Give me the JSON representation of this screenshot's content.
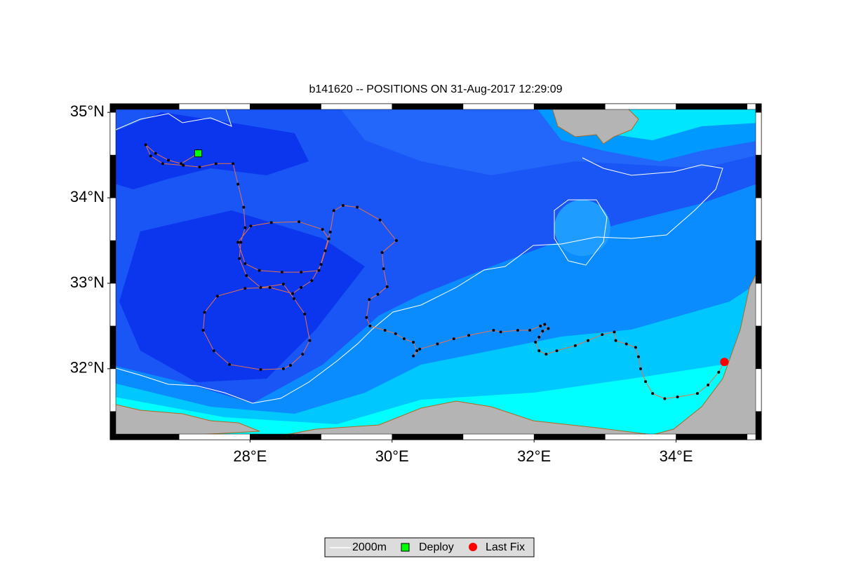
{
  "chart_data": {
    "type": "map",
    "title": "b141620 -- POSITIONS ON 31-Aug-2017 12:29:09",
    "xlim": [
      26.03,
      35.2
    ],
    "ylim": [
      31.17,
      35.1
    ],
    "xticks": [
      {
        "value": 28,
        "label": "28°E"
      },
      {
        "value": 30,
        "label": "30°E"
      },
      {
        "value": 32,
        "label": "32°E"
      },
      {
        "value": 34,
        "label": "34°E"
      }
    ],
    "yticks": [
      {
        "value": 32,
        "label": "32°N"
      },
      {
        "value": 33,
        "label": "33°N"
      },
      {
        "value": 34,
        "label": "34°N"
      },
      {
        "value": 35,
        "label": "35°N"
      }
    ],
    "contour": {
      "name": "2000m",
      "color": "#ffffff"
    },
    "track": {
      "color": "#e8704a",
      "marker_color": "#000000",
      "x": [
        27.27,
        27.03,
        26.85,
        26.67,
        26.53,
        26.6,
        26.77,
        27.06,
        27.29,
        27.52,
        27.76,
        27.83,
        27.91,
        27.93,
        27.87,
        27.85,
        27.95,
        28.15,
        28.47,
        28.62,
        28.77,
        28.84,
        28.74,
        28.57,
        28.47,
        28.15,
        27.71,
        27.49,
        27.34,
        27.36,
        27.54,
        27.93,
        28.28,
        28.6,
        28.72,
        28.87,
        29.0,
        29.06,
        29.11,
        29.02,
        28.69,
        28.3,
        28.01,
        27.83,
        27.93,
        28.13,
        28.45,
        28.72,
        28.97,
        29.13,
        29.18,
        29.31,
        29.51,
        29.83,
        30.06,
        29.86,
        29.88,
        29.93,
        29.8,
        29.68,
        29.64,
        29.69,
        29.9,
        30.05,
        30.17,
        30.3,
        30.35,
        30.3,
        30.39,
        30.64,
        30.87,
        31.08,
        31.43,
        31.53,
        31.77,
        31.94,
        32.09,
        32.15,
        32.2,
        32.12,
        32.07,
        32.02,
        32.07,
        32.17,
        32.32,
        32.58,
        32.76,
        32.96,
        33.13,
        33.15,
        33.3,
        33.43,
        33.47,
        33.5,
        33.57,
        33.67,
        33.84,
        34.02,
        34.3,
        34.45,
        34.6,
        34.68
      ],
      "y": [
        34.52,
        34.4,
        34.44,
        34.52,
        34.62,
        34.49,
        34.4,
        34.38,
        34.36,
        34.4,
        34.4,
        34.16,
        33.89,
        33.65,
        33.48,
        33.29,
        33.09,
        32.95,
        32.99,
        32.82,
        32.64,
        32.33,
        32.17,
        32.04,
        32.0,
        31.99,
        32.05,
        32.21,
        32.45,
        32.66,
        32.85,
        32.94,
        32.95,
        32.88,
        32.95,
        33.03,
        33.22,
        33.38,
        33.52,
        33.63,
        33.72,
        33.71,
        33.67,
        33.48,
        33.23,
        33.15,
        33.13,
        33.13,
        33.15,
        33.6,
        33.85,
        33.91,
        33.89,
        33.74,
        33.5,
        33.36,
        33.17,
        32.96,
        32.87,
        32.81,
        32.6,
        32.5,
        32.45,
        32.41,
        32.35,
        32.31,
        32.21,
        32.15,
        32.23,
        32.29,
        32.35,
        32.39,
        32.45,
        32.43,
        32.45,
        32.45,
        32.5,
        32.52,
        32.47,
        32.44,
        32.37,
        32.31,
        32.21,
        32.17,
        32.21,
        32.27,
        32.33,
        32.4,
        32.43,
        32.33,
        32.29,
        32.25,
        32.14,
        32.0,
        31.85,
        31.71,
        31.65,
        31.67,
        31.71,
        31.81,
        31.96,
        32.08
      ]
    },
    "deploy": {
      "name": "Deploy",
      "color": "#00ff00",
      "x": 27.27,
      "y": 34.52
    },
    "last_fix": {
      "name": "Last Fix",
      "color": "#ff0000",
      "x": 34.68,
      "y": 32.08
    }
  }
}
